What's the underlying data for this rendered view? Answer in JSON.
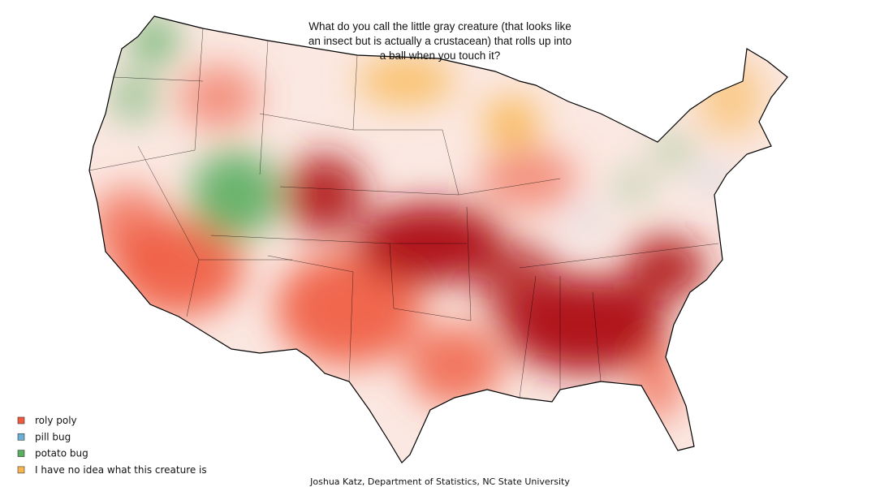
{
  "title": [
    "What do you call the little gray creature (that looks like",
    "an insect but is actually a crustacean) that rolls up into",
    "a ball when you touch it?"
  ],
  "legend": [
    {
      "label": "roly poly",
      "color": "#ef5a3f"
    },
    {
      "label": "pill bug",
      "color": "#6baed6"
    },
    {
      "label": "potato bug",
      "color": "#5aae61"
    },
    {
      "label": "I have no idea what this creature is",
      "color": "#f9b64e"
    }
  ],
  "credit": "Joshua Katz, Department of Statistics, NC State University"
}
